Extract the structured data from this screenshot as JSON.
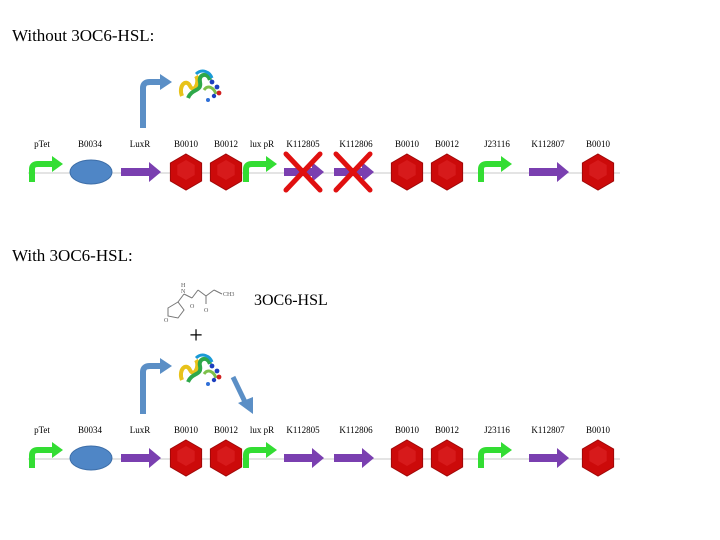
{
  "sections": [
    {
      "heading": "Without 3OC6-HSL:",
      "parts": [
        {
          "type": "promoter",
          "label": "pTet"
        },
        {
          "type": "rbs",
          "label": "B0034"
        },
        {
          "type": "cds",
          "label": "LuxR"
        },
        {
          "type": "terminator",
          "label": "B0010"
        },
        {
          "type": "terminator",
          "label": "B0012"
        },
        {
          "type": "promoter",
          "label": "lux pR"
        },
        {
          "type": "cds",
          "label": "K112805",
          "blocked": true
        },
        {
          "type": "cds",
          "label": "K112806",
          "blocked": true
        },
        {
          "type": "terminator",
          "label": "B0010"
        },
        {
          "type": "terminator",
          "label": "B0012"
        },
        {
          "type": "promoter",
          "label": "J23116"
        },
        {
          "type": "cds",
          "label": "K112807"
        },
        {
          "type": "terminator",
          "label": "B0010"
        }
      ]
    },
    {
      "heading": "With 3OC6-HSL:",
      "molecule_label": "3OC6-HSL",
      "molecule_atoms": {
        "ch3": "CH3",
        "n": "N",
        "h": "H",
        "o1": "O",
        "o2": "O",
        "o3": "O"
      },
      "plus_sign": "+",
      "parts": [
        {
          "type": "promoter",
          "label": "pTet"
        },
        {
          "type": "rbs",
          "label": "B0034"
        },
        {
          "type": "cds",
          "label": "LuxR"
        },
        {
          "type": "terminator",
          "label": "B0010"
        },
        {
          "type": "terminator",
          "label": "B0012"
        },
        {
          "type": "promoter",
          "label": "lux pR"
        },
        {
          "type": "cds",
          "label": "K112805"
        },
        {
          "type": "cds",
          "label": "K112806"
        },
        {
          "type": "terminator",
          "label": "B0010"
        },
        {
          "type": "terminator",
          "label": "B0012"
        },
        {
          "type": "promoter",
          "label": "J23116"
        },
        {
          "type": "cds",
          "label": "K112807"
        },
        {
          "type": "terminator",
          "label": "B0010"
        }
      ]
    }
  ],
  "colors": {
    "promoter": "#33dd33",
    "rbs": "#4f86c6",
    "cds": "#7a3fb0",
    "terminator": "#cc0a0a",
    "blocked_cross": "#e01010",
    "transcription_arrow": "#5b8fc6",
    "backbone": "#c8c8c8"
  },
  "icons": {
    "protein": "protein-ribbon-icon",
    "molecule": "hsl-molecule-icon"
  }
}
